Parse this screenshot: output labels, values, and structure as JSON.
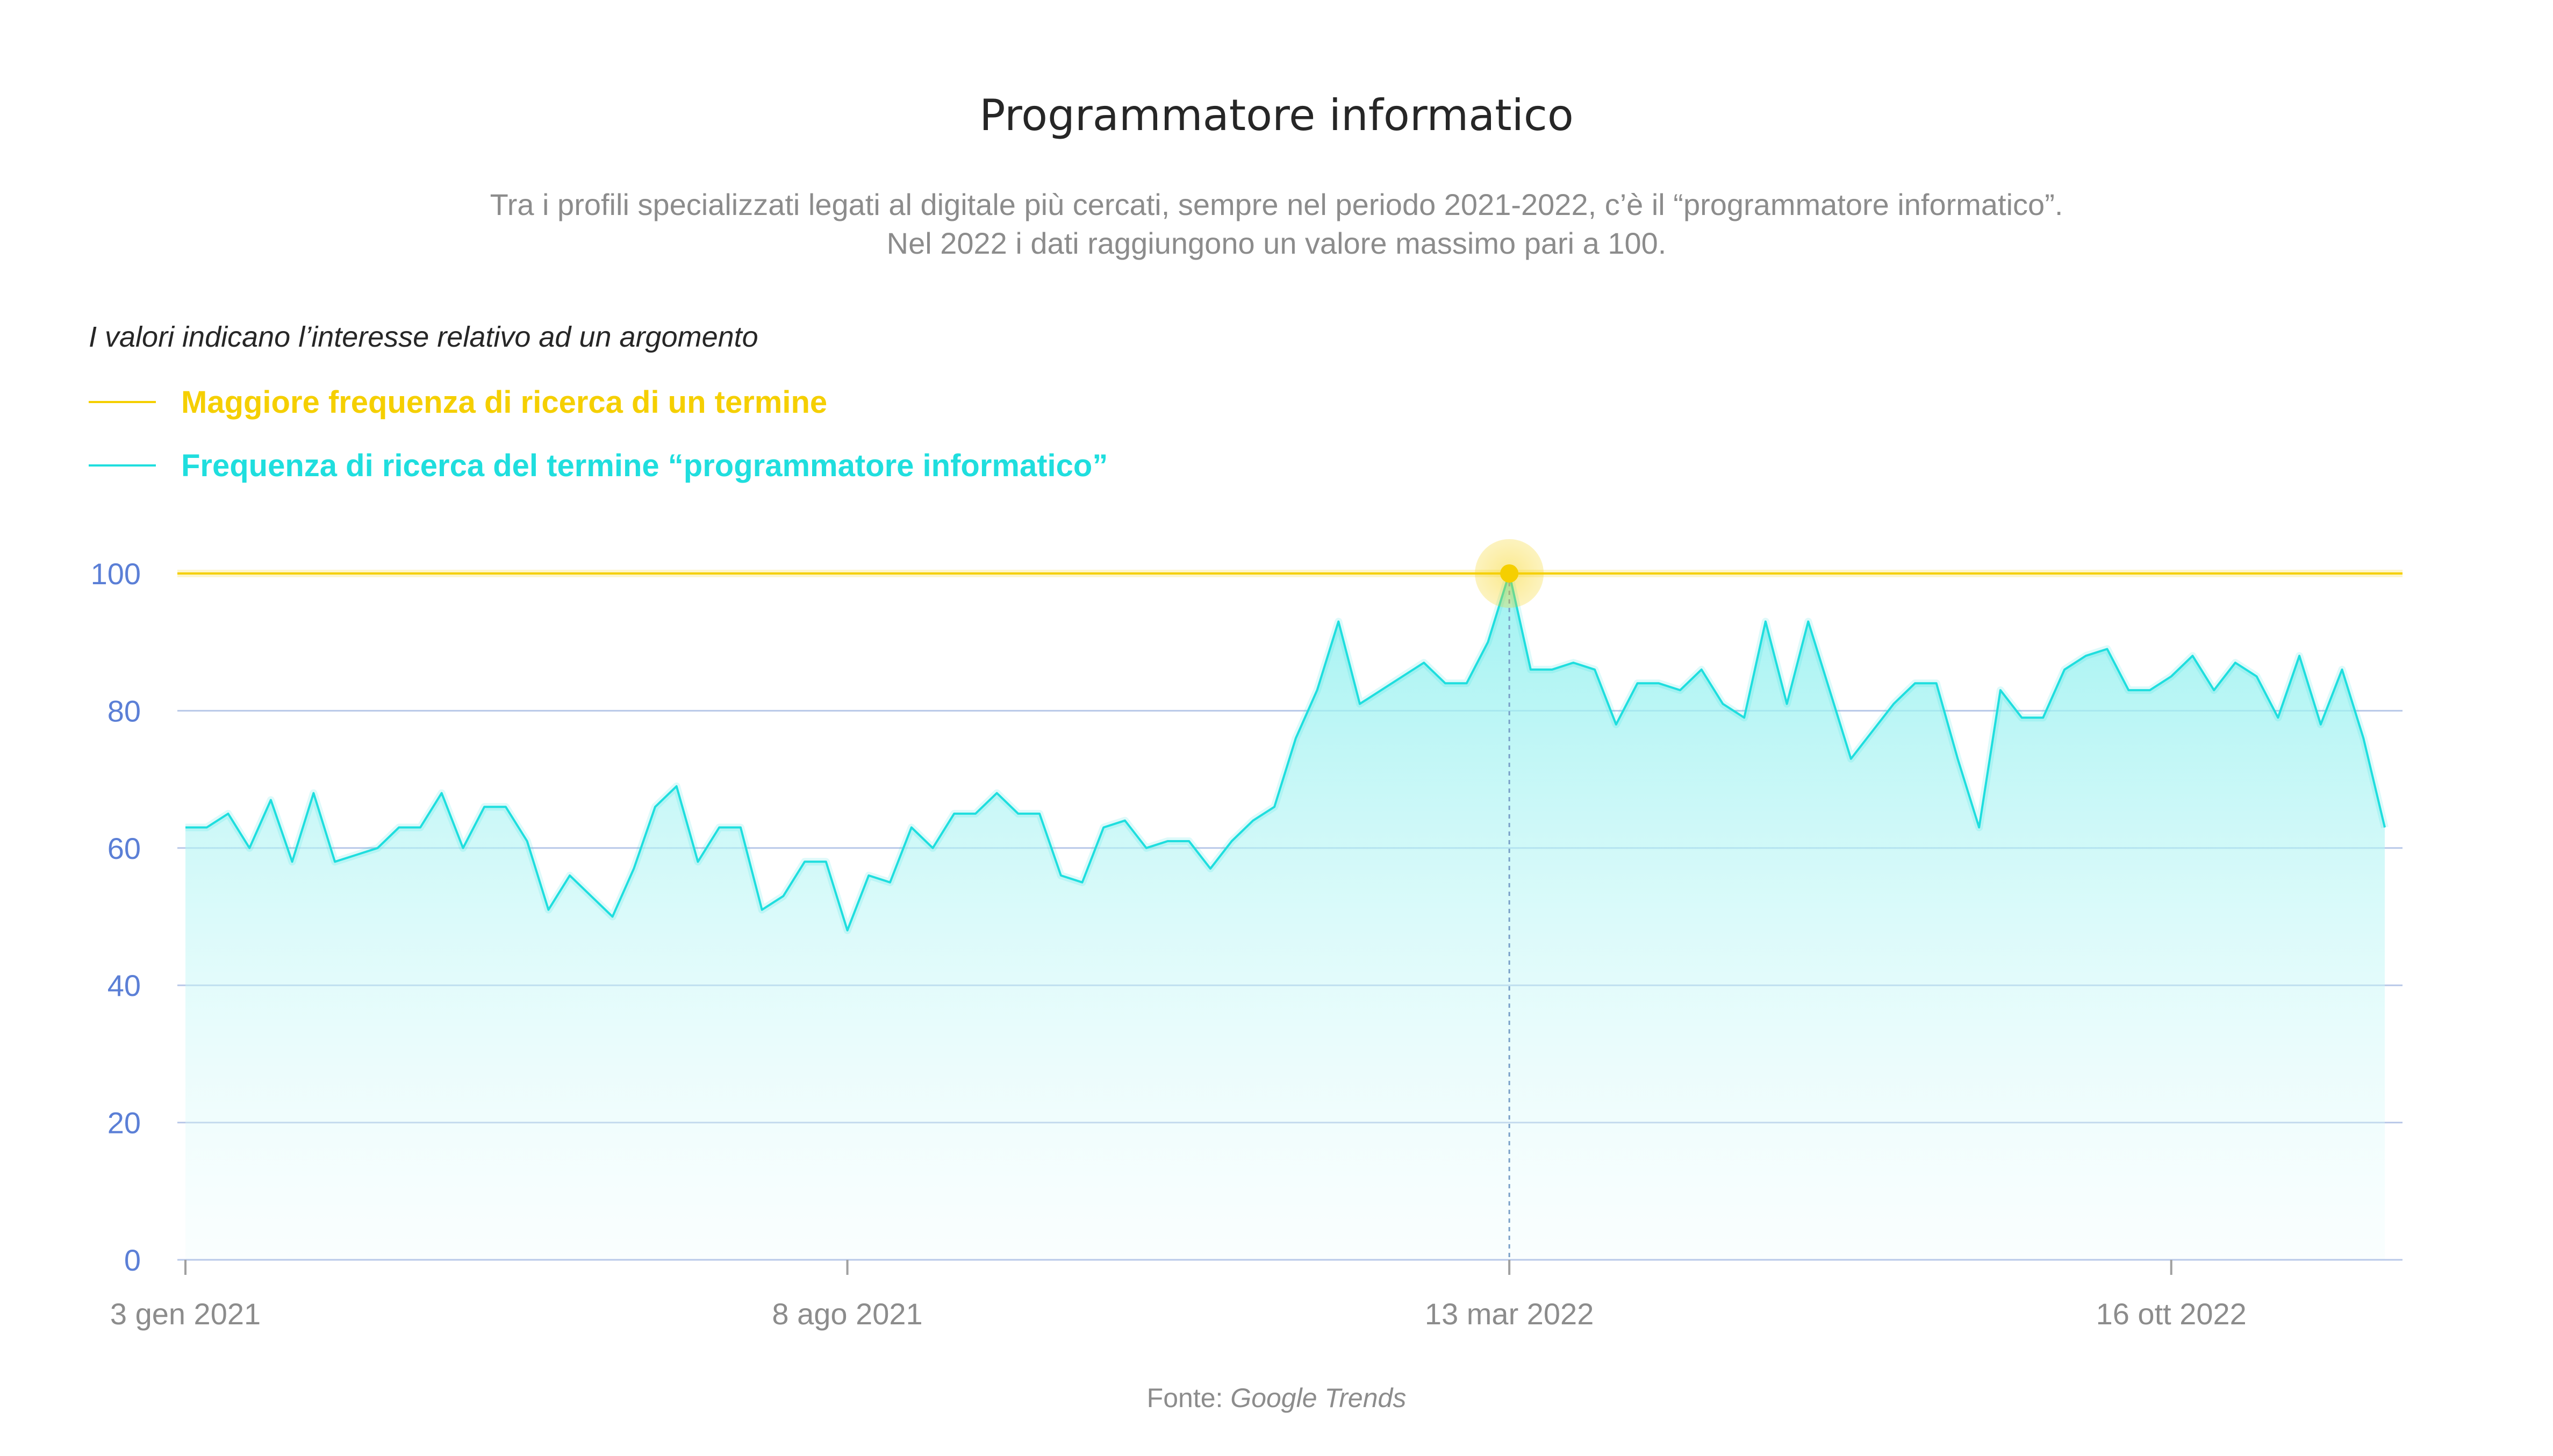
{
  "chart_data": {
    "type": "area",
    "title": "Programmatore informatico",
    "subtitle_lines": [
      "Tra i profili specializzati legati al digitale più cercati, sempre nel periodo 2021-2022, c’è il “programmatore informatico”.",
      "Nel 2022 i dati raggiungono un valore massimo pari a 100."
    ],
    "note": "I valori indicano l’interesse relativo ad un argomento",
    "legend": [
      {
        "label": "Maggiore frequenza di ricerca di un termine",
        "color": "#f5cf00"
      },
      {
        "label": "Frequenza di ricerca del termine “programmatore informatico”",
        "color": "#1fdede"
      }
    ],
    "ylim": [
      0,
      100
    ],
    "yticks": [
      0,
      20,
      40,
      60,
      80,
      100
    ],
    "xtick_labels": [
      "3 gen 2021",
      "8 ago 2021",
      "13 mar 2022",
      "16 ott 2022"
    ],
    "reference_line": {
      "value": 100
    },
    "peak_label": "13 mar 2022",
    "series": [
      {
        "name": "Frequenza di ricerca del termine “programmatore informatico”",
        "values": [
          63,
          63,
          65,
          60,
          67,
          58,
          68,
          58,
          59,
          60,
          63,
          63,
          68,
          60,
          66,
          66,
          61,
          51,
          56,
          53,
          50,
          57,
          66,
          69,
          58,
          63,
          63,
          51,
          53,
          58,
          58,
          48,
          56,
          55,
          63,
          60,
          65,
          65,
          68,
          65,
          65,
          56,
          55,
          63,
          64,
          60,
          61,
          61,
          57,
          61,
          64,
          66,
          76,
          83,
          93,
          81,
          83,
          85,
          87,
          84,
          84,
          90,
          100,
          86,
          86,
          87,
          86,
          78,
          84,
          84,
          83,
          86,
          81,
          79,
          93,
          81,
          93,
          83,
          73,
          77,
          81,
          84,
          84,
          73,
          63,
          83,
          79,
          79,
          86,
          88,
          89,
          83,
          83,
          85,
          88,
          83,
          87,
          85,
          79,
          88,
          78,
          86,
          76,
          63
        ]
      }
    ],
    "grid": true,
    "legend_placement": "top-left"
  },
  "source": {
    "prefix": "Fonte: ",
    "name": "Google Trends"
  },
  "colors": {
    "highlight": "#f5cf00",
    "series": "#1fdede",
    "grid": "#b8c8e8",
    "tick_text": "#5b7fd6",
    "axis_text": "#8c8c8c"
  }
}
